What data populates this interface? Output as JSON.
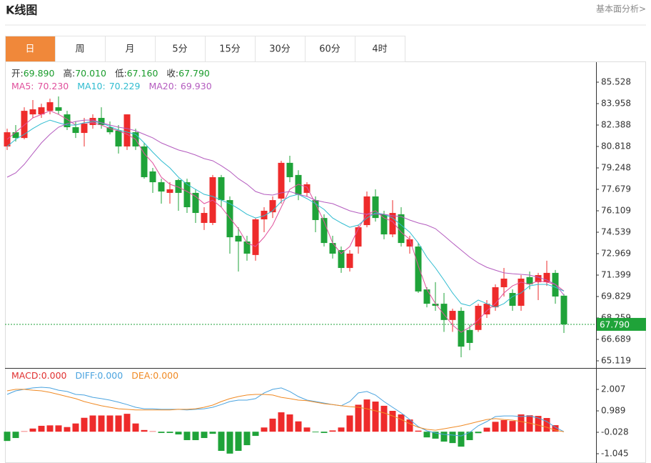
{
  "header": {
    "title": "K线图",
    "link": "基本面分析>"
  },
  "tabs": [
    "日",
    "周",
    "月",
    "5分",
    "15分",
    "30分",
    "60分",
    "4时"
  ],
  "active_tab": 0,
  "chart_data": [
    {
      "type": "candlestick",
      "up_color": "#ee2b2b",
      "down_color": "#1fa339",
      "legend_value_color": "#1a9c2c",
      "legend": [
        {
          "name": "开:",
          "value_label": "69.890"
        },
        {
          "name": "高:",
          "value_label": "70.010"
        },
        {
          "name": "低:",
          "value_label": "67.160"
        },
        {
          "name": "收:",
          "value_label": "67.790"
        }
      ],
      "open": [
        80.82,
        81.86,
        81.44,
        83.17,
        83.17,
        83.43,
        83.69,
        83.17,
        82.23,
        81.81,
        82.39,
        82.91,
        82.23,
        81.97,
        80.82,
        81.86,
        80.82,
        78.99,
        78.2,
        77.42,
        78.36,
        78.2,
        77.42,
        75.22,
        75.22,
        78.57,
        76.89,
        74.28,
        73.86,
        72.87,
        75.48,
        76.0,
        77.0,
        79.62,
        78.73,
        77.42,
        76.89,
        75.58,
        73.75,
        73.23,
        71.92,
        73.49,
        75.06,
        77.16,
        75.85,
        74.38,
        75.85,
        73.49,
        73.49,
        70.35,
        69.3,
        69.3,
        68.11,
        68.78,
        67.38,
        67.38,
        68.52,
        69.04,
        70.51,
        70.09,
        69.15,
        71.25,
        70.88,
        70.88,
        71.56,
        69.89
      ],
      "high": [
        82.12,
        82.39,
        83.69,
        84.22,
        83.95,
        84.32,
        84.48,
        83.43,
        82.65,
        82.91,
        83.17,
        83.69,
        82.65,
        82.39,
        83.17,
        82.12,
        81.08,
        79.25,
        78.46,
        78.2,
        78.46,
        78.46,
        77.68,
        76.37,
        78.73,
        78.73,
        77.16,
        74.9,
        74.28,
        75.58,
        76.37,
        77.16,
        79.77,
        80.14,
        79.08,
        78.2,
        77.16,
        75.85,
        74.28,
        73.49,
        73.23,
        75.06,
        77.52,
        77.68,
        76.11,
        76.89,
        76.37,
        74.28,
        73.75,
        70.51,
        70.88,
        70.09,
        68.94,
        69.04,
        67.76,
        69.3,
        69.57,
        70.72,
        71.92,
        70.35,
        71.4,
        71.66,
        71.56,
        72.45,
        71.77,
        70.01
      ],
      "low": [
        80.56,
        81.18,
        81.34,
        82.91,
        82.91,
        83.17,
        83.17,
        82.02,
        81.44,
        80.82,
        82.12,
        82.12,
        81.7,
        80.3,
        80.56,
        80.56,
        78.46,
        77.42,
        76.63,
        76.63,
        76.11,
        75.95,
        75.22,
        74.7,
        75.06,
        76.37,
        72.97,
        71.66,
        72.45,
        72.45,
        74.54,
        75.58,
        76.63,
        78.2,
        76.89,
        77.16,
        74.54,
        73.49,
        72.61,
        71.56,
        71.66,
        72.97,
        74.9,
        75.32,
        74.02,
        74.17,
        73.49,
        72.97,
        70.09,
        69.04,
        68.78,
        67.24,
        67.24,
        65.38,
        65.9,
        67.24,
        68.26,
        68.78,
        69.83,
        68.78,
        68.78,
        70.35,
        69.57,
        70.61,
        69.3,
        67.16
      ],
      "close": [
        81.86,
        81.44,
        83.43,
        83.54,
        83.69,
        84.06,
        83.43,
        82.23,
        81.81,
        82.49,
        82.91,
        82.39,
        81.86,
        80.82,
        83.17,
        80.82,
        78.57,
        78.2,
        77.52,
        77.68,
        77.42,
        76.37,
        75.95,
        75.95,
        78.57,
        76.89,
        74.17,
        73.86,
        72.97,
        75.48,
        76.11,
        76.89,
        79.62,
        78.57,
        77.31,
        78.05,
        75.43,
        73.75,
        72.97,
        71.92,
        72.97,
        74.9,
        77.16,
        75.58,
        74.38,
        75.95,
        73.75,
        74.02,
        70.2,
        69.3,
        69.15,
        68.11,
        68.78,
        66.16,
        66.43,
        69.15,
        69.3,
        70.51,
        71.14,
        69.15,
        71.14,
        70.72,
        71.4,
        71.56,
        69.83,
        67.79
      ],
      "series": [
        {
          "name": "MA5:",
          "value_label": "70.230",
          "color": "#e0509c",
          "values": [
            81.34,
            81.87,
            82.39,
            82.91,
            83.17,
            83.43,
            83.17,
            82.81,
            82.39,
            82.55,
            82.55,
            82.39,
            82.13,
            81.97,
            81.71,
            81.34,
            80.3,
            79.61,
            78.57,
            78.05,
            77.84,
            77.52,
            77.16,
            76.63,
            76.89,
            76.37,
            75.58,
            74.8,
            73.75,
            73.49,
            74.17,
            75.06,
            76.37,
            77.68,
            78.05,
            77.84,
            76.63,
            75.32,
            73.75,
            72.97,
            73.49,
            74.8,
            75.85,
            76.11,
            75.58,
            75.32,
            74.54,
            74.02,
            72.08,
            70.35,
            69.31,
            68.52,
            67.74,
            67.21,
            67.58,
            68.1,
            68.78,
            69.31,
            70.09,
            70.61,
            70.88,
            70.72,
            70.98,
            70.88,
            70.72,
            70.23
          ]
        },
        {
          "name": "MA10:",
          "value_label": "70.229",
          "color": "#2fbcd0",
          "values": [
            80.82,
            81.34,
            81.71,
            82.13,
            82.49,
            82.75,
            82.55,
            82.39,
            82.39,
            82.55,
            82.65,
            82.55,
            82.28,
            82.02,
            81.87,
            81.71,
            81.08,
            80.4,
            79.77,
            79.25,
            78.57,
            78.05,
            77.68,
            77.31,
            77.16,
            76.89,
            76.63,
            76.27,
            75.85,
            75.58,
            75.74,
            76.11,
            76.79,
            77.16,
            77.31,
            77.0,
            76.63,
            76.21,
            75.58,
            75.22,
            74.9,
            75.06,
            75.58,
            75.95,
            75.85,
            75.58,
            75.06,
            74.54,
            73.75,
            72.71,
            71.92,
            71.03,
            70.09,
            69.31,
            69.15,
            69.57,
            69.31,
            69.04,
            69.31,
            69.83,
            70.09,
            70.61,
            70.72,
            70.72,
            70.51,
            70.229
          ]
        },
        {
          "name": "MA20:",
          "value_label": "69.930",
          "color": "#b45cbf",
          "values": [
            78.57,
            78.88,
            79.51,
            80.3,
            81.08,
            81.71,
            82.23,
            82.49,
            82.65,
            82.75,
            82.75,
            82.55,
            82.39,
            82.23,
            82.13,
            81.97,
            81.71,
            81.45,
            81.08,
            80.82,
            80.56,
            80.4,
            80.19,
            79.93,
            79.77,
            79.41,
            78.99,
            78.46,
            78.05,
            77.52,
            77.31,
            77.26,
            77.42,
            77.52,
            77.31,
            77.16,
            76.89,
            76.74,
            76.63,
            76.37,
            76.11,
            75.95,
            75.85,
            75.85,
            75.85,
            75.74,
            75.69,
            75.43,
            75.22,
            75.06,
            74.8,
            74.28,
            73.75,
            73.23,
            72.71,
            72.29,
            71.97,
            71.76,
            71.56,
            71.5,
            71.45,
            71.4,
            71.24,
            71.03,
            70.72,
            69.93
          ]
        }
      ],
      "ylim": [
        64.596,
        86.941
      ],
      "yticks": [
        85.528,
        83.958,
        82.388,
        80.818,
        79.248,
        77.679,
        76.109,
        74.539,
        72.969,
        71.399,
        69.829,
        68.259,
        66.689,
        65.119
      ],
      "last_price": {
        "value": 67.79,
        "label": "67.790"
      }
    },
    {
      "type": "macd",
      "up_color": "#ee2b2b",
      "down_color": "#1fa339",
      "series": [
        {
          "name": "MACD:",
          "value_label": "0.000",
          "color": "#e03030",
          "values": [
            -0.44,
            -0.3,
            0.02,
            0.15,
            0.28,
            0.3,
            0.3,
            0.22,
            0.39,
            0.66,
            0.77,
            0.77,
            0.77,
            0.77,
            0.85,
            0.39,
            0.08,
            0.02,
            -0.06,
            -0.06,
            -0.13,
            -0.4,
            -0.4,
            -0.3,
            -0.1,
            -0.91,
            -1.04,
            -0.91,
            -0.64,
            -0.2,
            0.2,
            0.62,
            0.92,
            0.82,
            0.49,
            0.2,
            -0.03,
            -0.06,
            0.06,
            0.2,
            0.77,
            1.28,
            1.53,
            1.43,
            1.23,
            0.99,
            0.82,
            0.58,
            0.05,
            -0.27,
            -0.33,
            -0.47,
            -0.54,
            -0.71,
            -0.4,
            -0.07,
            0.19,
            0.47,
            0.55,
            0.51,
            0.82,
            0.78,
            0.75,
            0.65,
            0.31,
            0
          ]
        },
        {
          "name": "DIFF:",
          "value_label": "0.000",
          "color": "#4aa3df",
          "values": [
            1.77,
            1.94,
            2.01,
            2.08,
            2.11,
            2.08,
            1.97,
            1.91,
            1.77,
            1.74,
            1.63,
            1.57,
            1.5,
            1.4,
            1.29,
            1.16,
            1.09,
            1.09,
            1.06,
            1.06,
            1.06,
            1.03,
            1.06,
            1.09,
            1.16,
            1.29,
            1.43,
            1.5,
            1.5,
            1.57,
            1.84,
            2.01,
            2.08,
            1.91,
            1.67,
            1.5,
            1.43,
            1.36,
            1.29,
            1.23,
            1.43,
            1.84,
            1.91,
            1.74,
            1.43,
            1.16,
            0.89,
            0.58,
            0.24,
            0.04,
            -0.06,
            -0.13,
            -0.16,
            -0.2,
            -0.03,
            0.28,
            0.48,
            0.72,
            0.75,
            0.75,
            0.72,
            0.75,
            0.65,
            0.48,
            0.21,
            0
          ]
        },
        {
          "name": "DEA:",
          "value_label": "0.000",
          "color": "#f08a24",
          "values": [
            1.94,
            2.01,
            2.01,
            1.97,
            1.94,
            1.87,
            1.77,
            1.67,
            1.57,
            1.43,
            1.33,
            1.23,
            1.16,
            1.09,
            1.06,
            1.03,
            1.03,
            1.03,
            1.03,
            1.03,
            1.06,
            1.06,
            1.09,
            1.16,
            1.26,
            1.43,
            1.57,
            1.67,
            1.74,
            1.77,
            1.77,
            1.74,
            1.63,
            1.57,
            1.5,
            1.47,
            1.4,
            1.33,
            1.29,
            1.23,
            1.19,
            1.16,
            1.09,
            0.99,
            0.89,
            0.75,
            0.58,
            0.38,
            0.21,
            0.11,
            0.07,
            0.14,
            0.21,
            0.28,
            0.38,
            0.48,
            0.58,
            0.62,
            0.58,
            0.55,
            0.48,
            0.41,
            0.31,
            0.21,
            0.07,
            0
          ]
        }
      ],
      "ylim": [
        -1.486,
        3.025
      ],
      "yticks": [
        2.007,
        0.989,
        -0.028,
        -1.045
      ]
    }
  ]
}
